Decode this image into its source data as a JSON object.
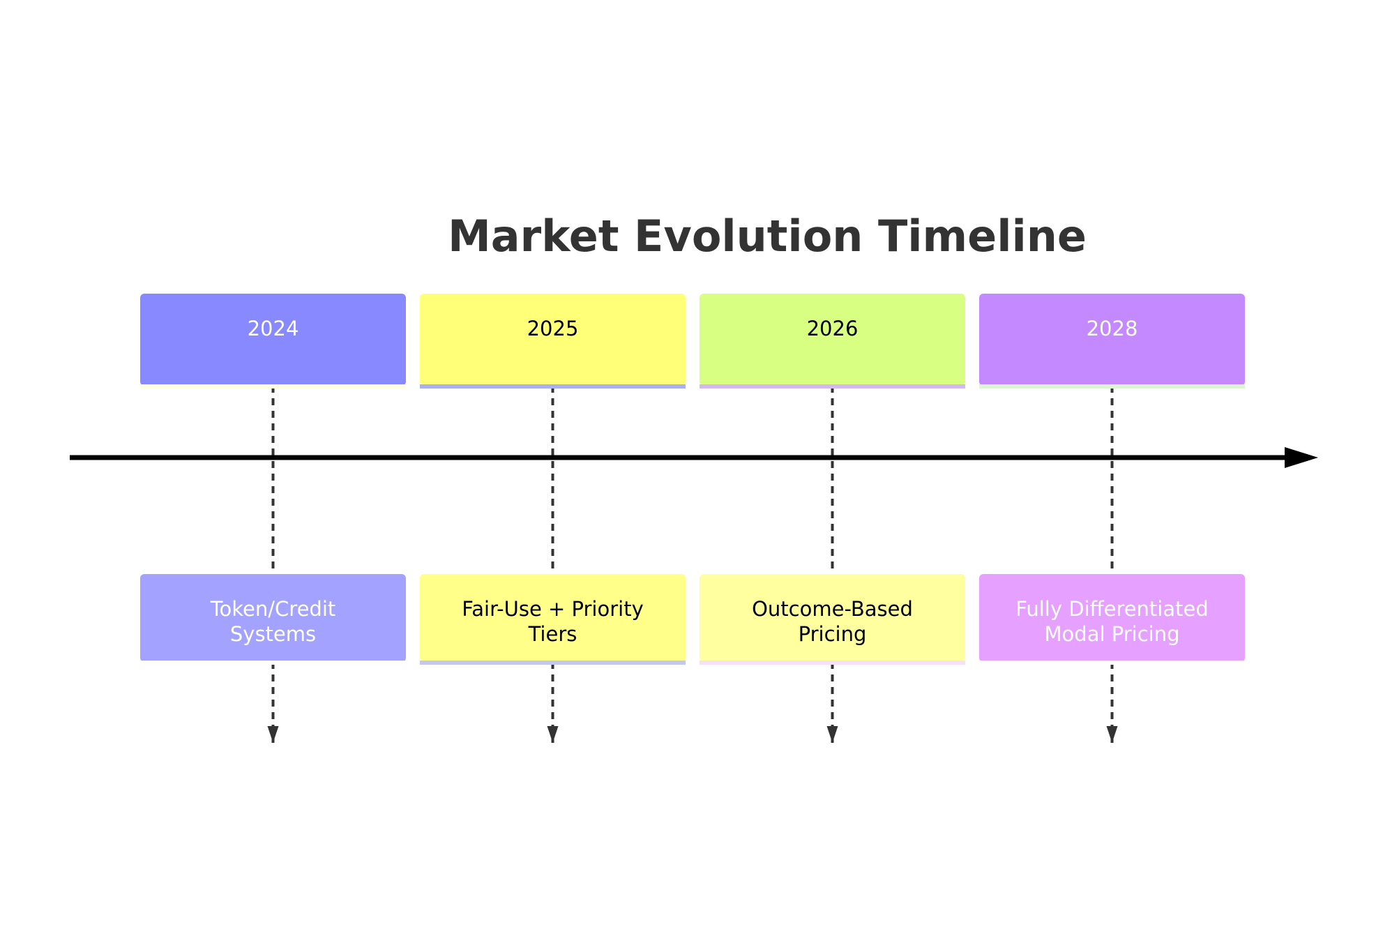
{
  "title": "Market Evolution Timeline",
  "timeline": {
    "periods": [
      {
        "year": "2024",
        "event": [
          "Token/Credit",
          "Systems"
        ],
        "colors": {
          "year_fill": "#8888ff",
          "year_text": "#ffffff",
          "year_underline": "#fffde0",
          "event_fill": "#a3a3ff",
          "event_text": "#ffffff",
          "event_underline": "#ffffff"
        }
      },
      {
        "year": "2025",
        "event": [
          "Fair-Use + Priority",
          "Tiers"
        ],
        "colors": {
          "year_fill": "#ffff78",
          "year_text": "#000000",
          "year_underline": "#aab0f0",
          "event_fill": "#ffff8a",
          "event_text": "#000000",
          "event_underline": "#c4c8f0"
        }
      },
      {
        "year": "2026",
        "event": [
          "Outcome-Based",
          "Pricing"
        ],
        "colors": {
          "year_fill": "#d8ff82",
          "year_text": "#000000",
          "year_underline": "#d4b8f0",
          "event_fill": "#ffffa0",
          "event_text": "#000000",
          "event_underline": "#f6e0f8"
        }
      },
      {
        "year": "2028",
        "event": [
          "Fully Differentiated",
          "Modal Pricing"
        ],
        "colors": {
          "year_fill": "#c488ff",
          "year_text": "#ffffff",
          "year_underline": "#dcf5d2",
          "event_fill": "#e6a0ff",
          "event_text": "#ffffff",
          "event_underline": "#ffffff"
        }
      }
    ],
    "axis_color": "#000000",
    "connector_color": "#333333",
    "title_color": "#333333"
  }
}
